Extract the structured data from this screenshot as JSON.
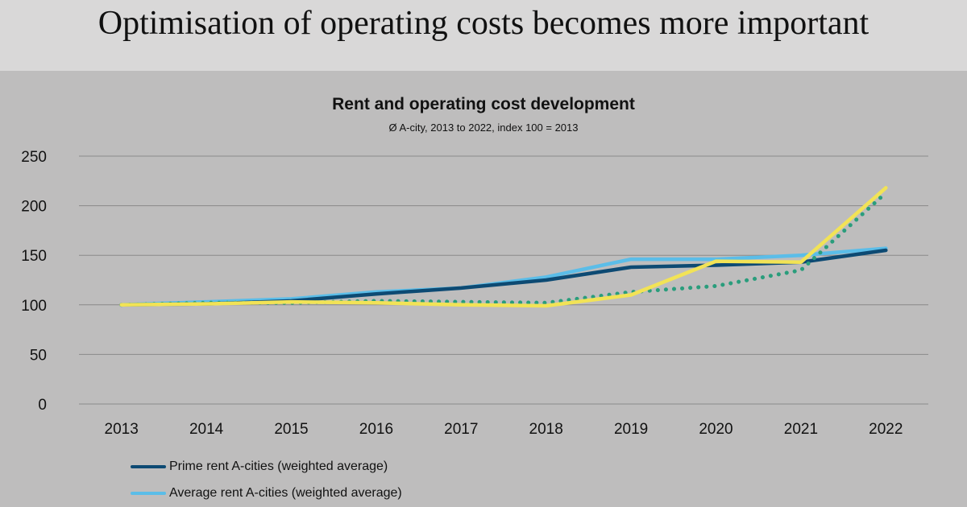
{
  "header": {
    "title": "Optimisation of operating costs becomes more important"
  },
  "chart_data": {
    "type": "line",
    "title": "Rent and operating cost development",
    "subtitle": "Ø A-city, 2013 to 2022, index 100 = 2013",
    "categories": [
      "2013",
      "2014",
      "2015",
      "2016",
      "2017",
      "2018",
      "2019",
      "2020",
      "2021",
      "2022"
    ],
    "ylim": [
      0,
      250
    ],
    "yticks": [
      0,
      50,
      100,
      150,
      200,
      250
    ],
    "grid": true,
    "legend_position": "bottom-left",
    "series": [
      {
        "name": "Prime rent A-cities (weighted average)",
        "color": "#0d4a73",
        "style": "solid",
        "values": [
          100,
          101,
          104,
          111,
          117,
          125,
          138,
          140,
          143,
          155
        ]
      },
      {
        "name": "Average rent A-cities (weighted average)",
        "color": "#5bbde8",
        "style": "solid",
        "values": [
          100,
          103,
          106,
          113,
          117,
          128,
          146,
          146,
          150,
          157
        ]
      },
      {
        "name": "",
        "color": "#f2e356",
        "style": "solid",
        "values": [
          100,
          101,
          103,
          102,
          100,
          99,
          110,
          144,
          143,
          218
        ]
      },
      {
        "name": "",
        "color": "#2a9d7c",
        "style": "dotted",
        "values": [
          100,
          102,
          102,
          104,
          103,
          102,
          113,
          119,
          135,
          213
        ]
      }
    ]
  }
}
